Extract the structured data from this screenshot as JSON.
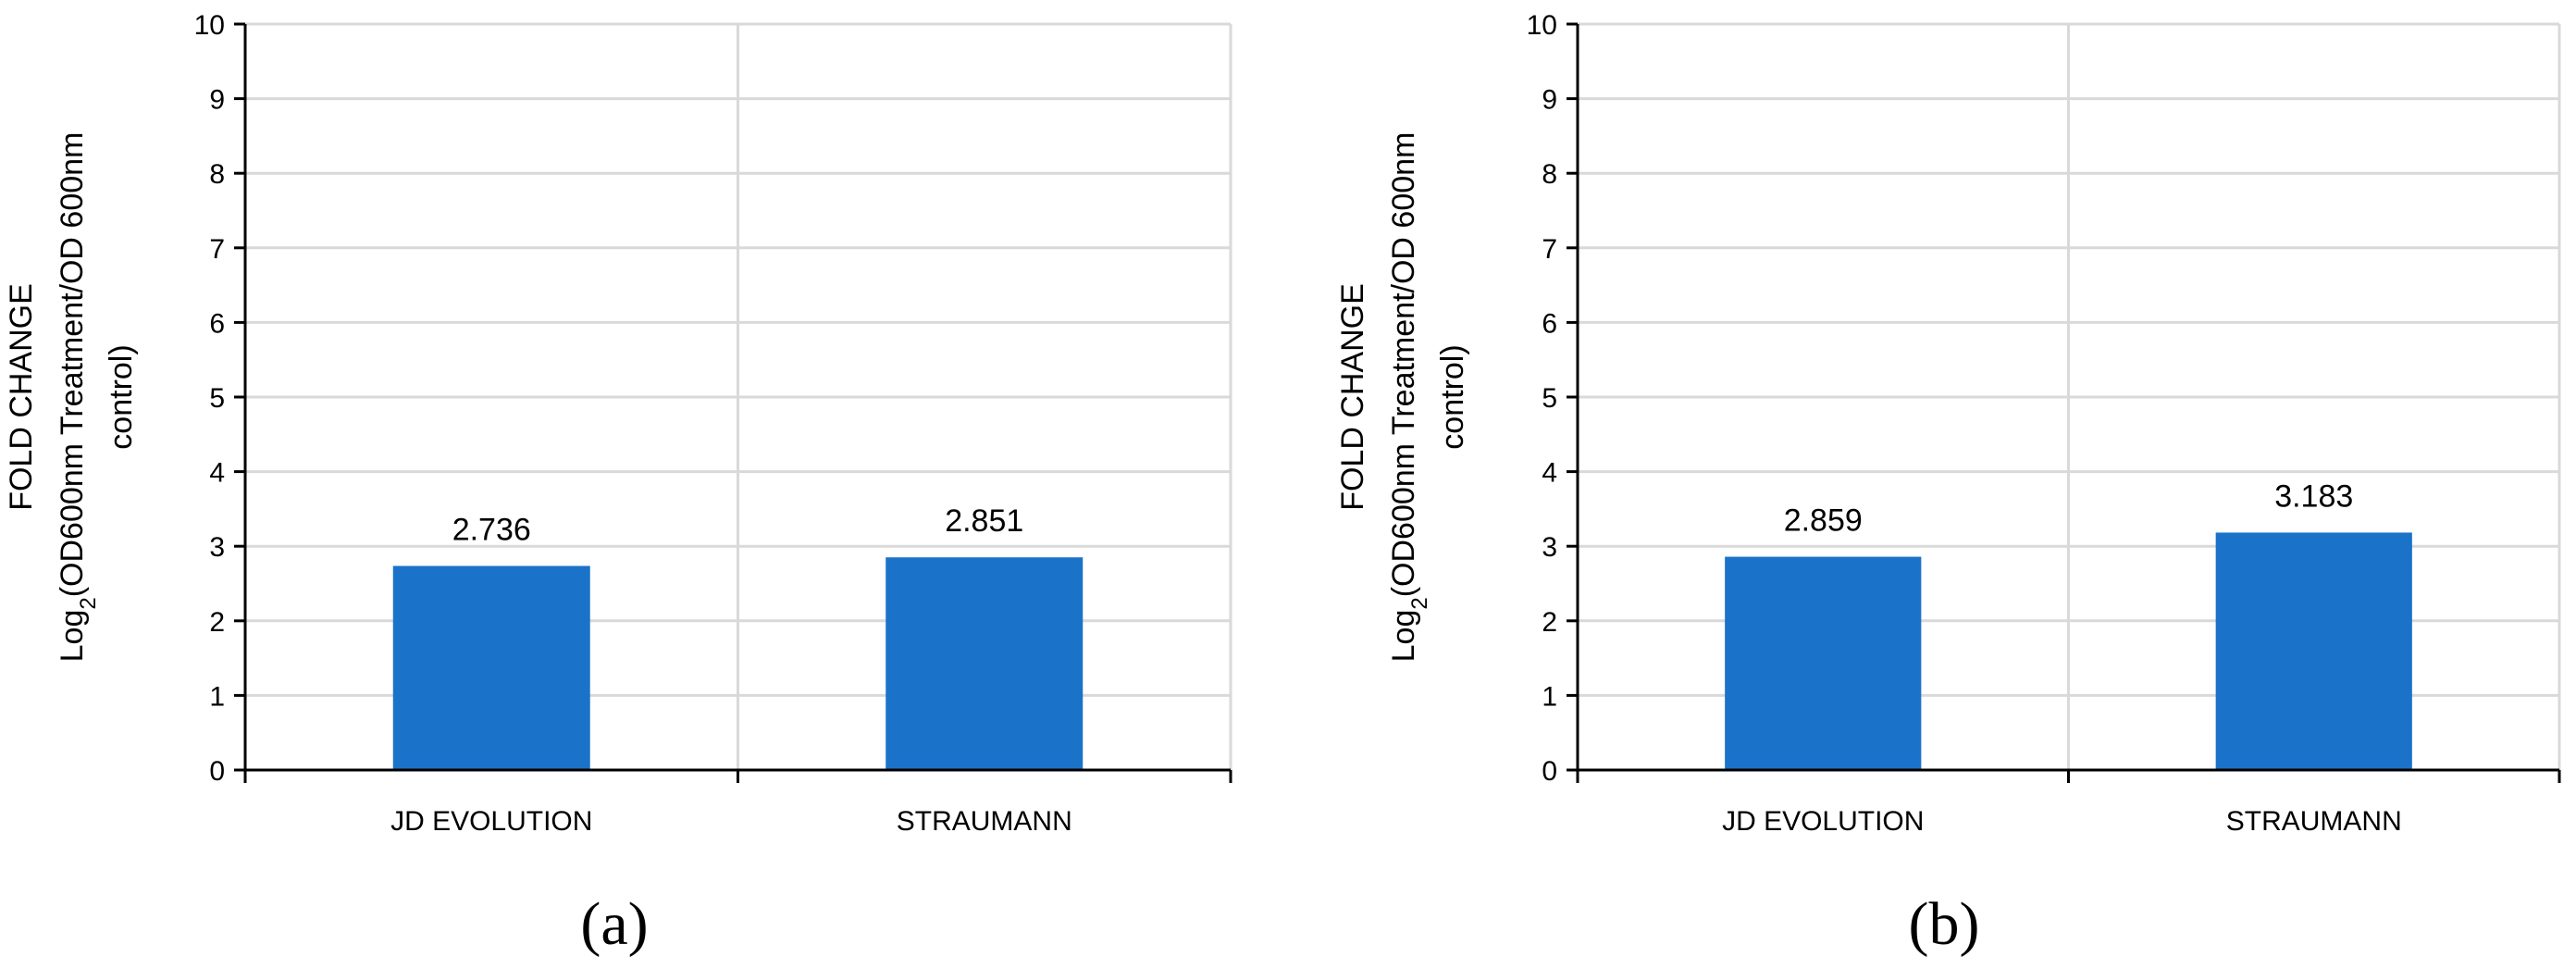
{
  "chart_data": [
    {
      "type": "bar",
      "panel_label": "(a)",
      "categories": [
        "JD EVOLUTION",
        "STRAUMANN"
      ],
      "values": [
        2.736,
        2.851
      ],
      "data_labels": [
        "2.736",
        "2.851"
      ],
      "ylabel_lines": [
        "FOLD CHANGE",
        "Log2(OD600nm Treatment/OD 600nm",
        "control)"
      ],
      "ylabel_prefix": "Log",
      "ylabel_subscript": "2",
      "ylabel_suffix": "(OD600nm Treatment/OD 600nm",
      "ylim": [
        0,
        10
      ],
      "yticks": [
        "0",
        "1",
        "2",
        "3",
        "4",
        "5",
        "6",
        "7",
        "8",
        "9",
        "10"
      ],
      "grid": true,
      "bar_color": "#1a73c8"
    },
    {
      "type": "bar",
      "panel_label": "(b)",
      "categories": [
        "JD EVOLUTION",
        "STRAUMANN"
      ],
      "values": [
        2.859,
        3.183
      ],
      "data_labels": [
        "2.859",
        "3.183"
      ],
      "ylabel_lines": [
        "FOLD CHANGE",
        "Log2(OD600nm Treatment/OD 600nm",
        "control)"
      ],
      "ylabel_prefix": "Log",
      "ylabel_subscript": "2",
      "ylabel_suffix": "(OD600nm Treatment/OD 600nm",
      "ylim": [
        0,
        10
      ],
      "yticks": [
        "0",
        "1",
        "2",
        "3",
        "4",
        "5",
        "6",
        "7",
        "8",
        "9",
        "10"
      ],
      "grid": true,
      "bar_color": "#1a73c8"
    }
  ]
}
